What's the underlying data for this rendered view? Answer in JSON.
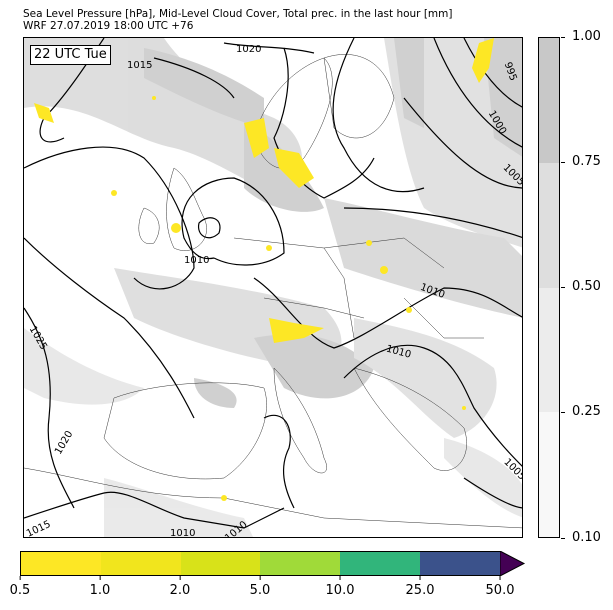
{
  "title": {
    "line1": "Sea Level Pressure [hPa], Mid-Level Cloud Cover, Total prec. in the last hour [mm]",
    "line2": "WRF 27.07.2019 18:00 UTC +76"
  },
  "map": {
    "time_label": "22 UTC Tue",
    "isobar_labels": [
      "1020",
      "1015",
      "1010",
      "1025",
      "1020",
      "1015",
      "1010",
      "1010",
      "1010",
      "1010",
      "995",
      "1000",
      "1005",
      "1005"
    ],
    "colors": {
      "cloud": "#c8c8c8",
      "precip": "#fde725",
      "isobar": "#000000"
    }
  },
  "cloud_colorbar": {
    "ticks": [
      "1.00",
      "0.75",
      "0.50",
      "0.25",
      "0.10"
    ],
    "colors": [
      "#c8c8c8",
      "#dedede",
      "#ececec",
      "#f8f8f8"
    ]
  },
  "precip_colorbar": {
    "ticks": [
      "0.5",
      "1.0",
      "2.0",
      "5.0",
      "10.0",
      "25.0",
      "50.0"
    ],
    "colors": [
      "#fde725",
      "#f1e51d",
      "#d8e219",
      "#a0da39",
      "#31b57b",
      "#3b528b"
    ],
    "extend_color": "#440154"
  }
}
